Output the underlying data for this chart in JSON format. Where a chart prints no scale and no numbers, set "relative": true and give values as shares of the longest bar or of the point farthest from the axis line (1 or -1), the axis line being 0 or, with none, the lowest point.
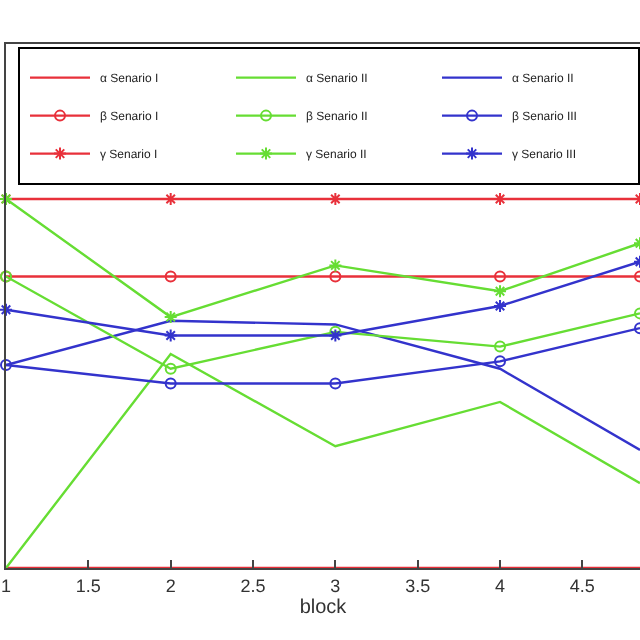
{
  "chart_data": {
    "type": "line",
    "relative": true,
    "xlabel": "block",
    "x": [
      1,
      2,
      3,
      4,
      4.85
    ],
    "xlim": [
      1,
      4.85
    ],
    "xticks": [
      1,
      1.5,
      2,
      2.5,
      3,
      3.5,
      4,
      4.5
    ],
    "legend": "top right",
    "series": [
      {
        "name": "α Senario I",
        "color": "#e8303a",
        "marker": "none",
        "values": [
          0,
          0,
          0,
          0,
          0
        ]
      },
      {
        "name": "α Senario II",
        "color": "#66dd33",
        "marker": "none",
        "values": [
          0,
          0.58,
          0.33,
          0.45,
          0.23
        ]
      },
      {
        "name": "α Senario II",
        "color": "#3333cc",
        "marker": "none",
        "values": [
          0.55,
          0.67,
          0.66,
          0.54,
          0.32
        ]
      },
      {
        "name": "β Senario I",
        "color": "#e8303a",
        "marker": "circle",
        "values": [
          0.79,
          0.79,
          0.79,
          0.79,
          0.79
        ]
      },
      {
        "name": "β Senario II",
        "color": "#66dd33",
        "marker": "circle",
        "values": [
          0.79,
          0.54,
          0.64,
          0.6,
          0.69
        ]
      },
      {
        "name": "β Senario III",
        "color": "#3333cc",
        "marker": "circle",
        "values": [
          0.55,
          0.5,
          0.5,
          0.56,
          0.65
        ]
      },
      {
        "name": "γ Senario I",
        "color": "#e8303a",
        "marker": "cross",
        "values": [
          1,
          1,
          1,
          1,
          1
        ]
      },
      {
        "name": "γ Senario II",
        "color": "#66dd33",
        "marker": "cross",
        "values": [
          1,
          0.68,
          0.82,
          0.75,
          0.88
        ]
      },
      {
        "name": "γ Senario III",
        "color": "#3333cc",
        "marker": "cross",
        "values": [
          0.7,
          0.63,
          0.63,
          0.71,
          0.83
        ]
      }
    ]
  }
}
